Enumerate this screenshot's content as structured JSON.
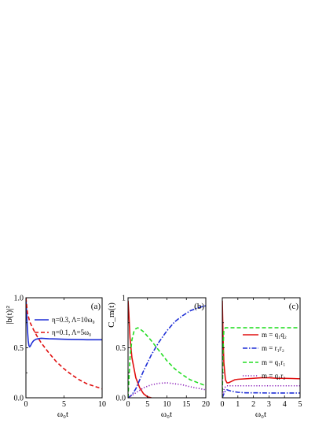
{
  "chart_data": [
    {
      "panel": "(a)",
      "type": "line",
      "ylabel": "|b(t)|²",
      "xlabel": "ω₀t",
      "xlim": [
        0,
        10
      ],
      "ylim": [
        0,
        1.0
      ],
      "xticks": [
        "0",
        "5",
        "10"
      ],
      "yticks": [
        "0.0",
        "0.5",
        "1.0"
      ],
      "legend_position": "top-right",
      "series": [
        {
          "name": "η=0.3, Λ=10ω₀",
          "color": "#1f2fd6",
          "dash": "solid",
          "x": [
            0,
            0.1,
            0.2,
            0.3,
            0.4,
            0.5,
            0.6,
            0.8,
            1.0,
            1.3,
            1.6,
            2,
            3,
            4,
            5,
            6,
            7,
            8,
            9,
            10
          ],
          "y": [
            1.0,
            0.84,
            0.68,
            0.57,
            0.52,
            0.51,
            0.52,
            0.55,
            0.57,
            0.585,
            0.59,
            0.595,
            0.59,
            0.588,
            0.585,
            0.583,
            0.582,
            0.58,
            0.58,
            0.58
          ]
        },
        {
          "name": "η=0.1, Λ=5ω₀",
          "color": "#e01010",
          "dash": "dash",
          "x": [
            0,
            0.2,
            0.5,
            1,
            1.5,
            2,
            3,
            4,
            5,
            6,
            7,
            8,
            9,
            10
          ],
          "y": [
            1.0,
            0.85,
            0.76,
            0.68,
            0.61,
            0.55,
            0.45,
            0.36,
            0.29,
            0.23,
            0.18,
            0.14,
            0.115,
            0.09
          ]
        }
      ]
    },
    {
      "panel": "(b)",
      "type": "line",
      "ylabel": "C_m(t)",
      "xlabel": "ω₀t",
      "xlim": [
        0,
        20
      ],
      "ylim": [
        0,
        1.0
      ],
      "xticks": [
        "0",
        "5",
        "10",
        "15",
        "20"
      ],
      "yticks": [
        "0.0",
        "0.5",
        "1"
      ],
      "series": [
        {
          "color": "#e01010",
          "dash": "solid",
          "x": [
            0,
            0.2,
            0.5,
            1,
            2,
            3,
            4,
            5,
            6
          ],
          "y": [
            0.97,
            0.85,
            0.6,
            0.4,
            0.2,
            0.1,
            0.04,
            0.01,
            0.0
          ]
        },
        {
          "color": "#1f2fd6",
          "dash": "dashdot",
          "x": [
            0,
            1,
            2,
            3,
            4,
            6,
            8,
            10,
            12,
            14,
            16,
            18,
            20
          ],
          "y": [
            0.0,
            0.03,
            0.09,
            0.18,
            0.27,
            0.43,
            0.56,
            0.67,
            0.76,
            0.82,
            0.87,
            0.9,
            0.92
          ]
        },
        {
          "color": "#22dd22",
          "dash": "dash",
          "x": [
            0,
            0.5,
            1,
            1.5,
            2,
            2.5,
            3,
            4,
            6,
            8,
            10,
            12,
            14,
            16,
            18,
            20
          ],
          "y": [
            0.0,
            0.4,
            0.58,
            0.66,
            0.69,
            0.7,
            0.69,
            0.66,
            0.57,
            0.47,
            0.37,
            0.29,
            0.23,
            0.18,
            0.15,
            0.12
          ]
        },
        {
          "color": "#8a1fb8",
          "dash": "dot",
          "x": [
            0,
            2,
            4,
            6,
            8,
            10,
            12,
            14,
            16,
            18,
            20
          ],
          "y": [
            0.0,
            0.05,
            0.1,
            0.13,
            0.145,
            0.15,
            0.14,
            0.13,
            0.11,
            0.095,
            0.08
          ]
        }
      ]
    },
    {
      "panel": "(c)",
      "type": "line",
      "xlabel": "ω₀t",
      "xlim": [
        0,
        5
      ],
      "ylim": [
        0,
        1.0
      ],
      "xticks": [
        "0",
        "1",
        "2",
        "3",
        "4",
        "5"
      ],
      "legend_position": "center-right",
      "series": [
        {
          "name": "m = q₁q₂",
          "color": "#e01010",
          "dash": "solid",
          "x": [
            0,
            0.05,
            0.1,
            0.2,
            0.3,
            0.4,
            0.6,
            0.8,
            1,
            1.5,
            2,
            2.5,
            3,
            3.5,
            4,
            4.5,
            5
          ],
          "y": [
            0.97,
            0.6,
            0.35,
            0.18,
            0.15,
            0.15,
            0.165,
            0.18,
            0.185,
            0.19,
            0.195,
            0.2,
            0.2,
            0.195,
            0.195,
            0.193,
            0.19
          ]
        },
        {
          "name": "m = r₁r₂",
          "color": "#1f2fd6",
          "dash": "dashdot",
          "x": [
            0,
            0.1,
            0.2,
            0.3,
            0.5,
            0.8,
            1,
            1.5,
            2,
            3,
            4,
            5
          ],
          "y": [
            0.0,
            0.04,
            0.07,
            0.08,
            0.07,
            0.06,
            0.055,
            0.05,
            0.05,
            0.048,
            0.048,
            0.048
          ]
        },
        {
          "name": "m = q₁r₁",
          "color": "#22dd22",
          "dash": "dash",
          "x": [
            0,
            0.05,
            0.1,
            0.15,
            0.2,
            0.3,
            0.5,
            1,
            2,
            3,
            4,
            5
          ],
          "y": [
            0.0,
            0.5,
            0.67,
            0.69,
            0.7,
            0.7,
            0.7,
            0.7,
            0.7,
            0.7,
            0.7,
            0.7
          ]
        },
        {
          "name": "m = q₁r₂",
          "color": "#8a1fb8",
          "dash": "dot",
          "x": [
            0,
            0.1,
            0.2,
            0.3,
            0.5,
            1,
            2,
            3,
            4,
            5
          ],
          "y": [
            0.0,
            0.08,
            0.11,
            0.12,
            0.12,
            0.12,
            0.12,
            0.12,
            0.12,
            0.12
          ]
        }
      ]
    }
  ]
}
